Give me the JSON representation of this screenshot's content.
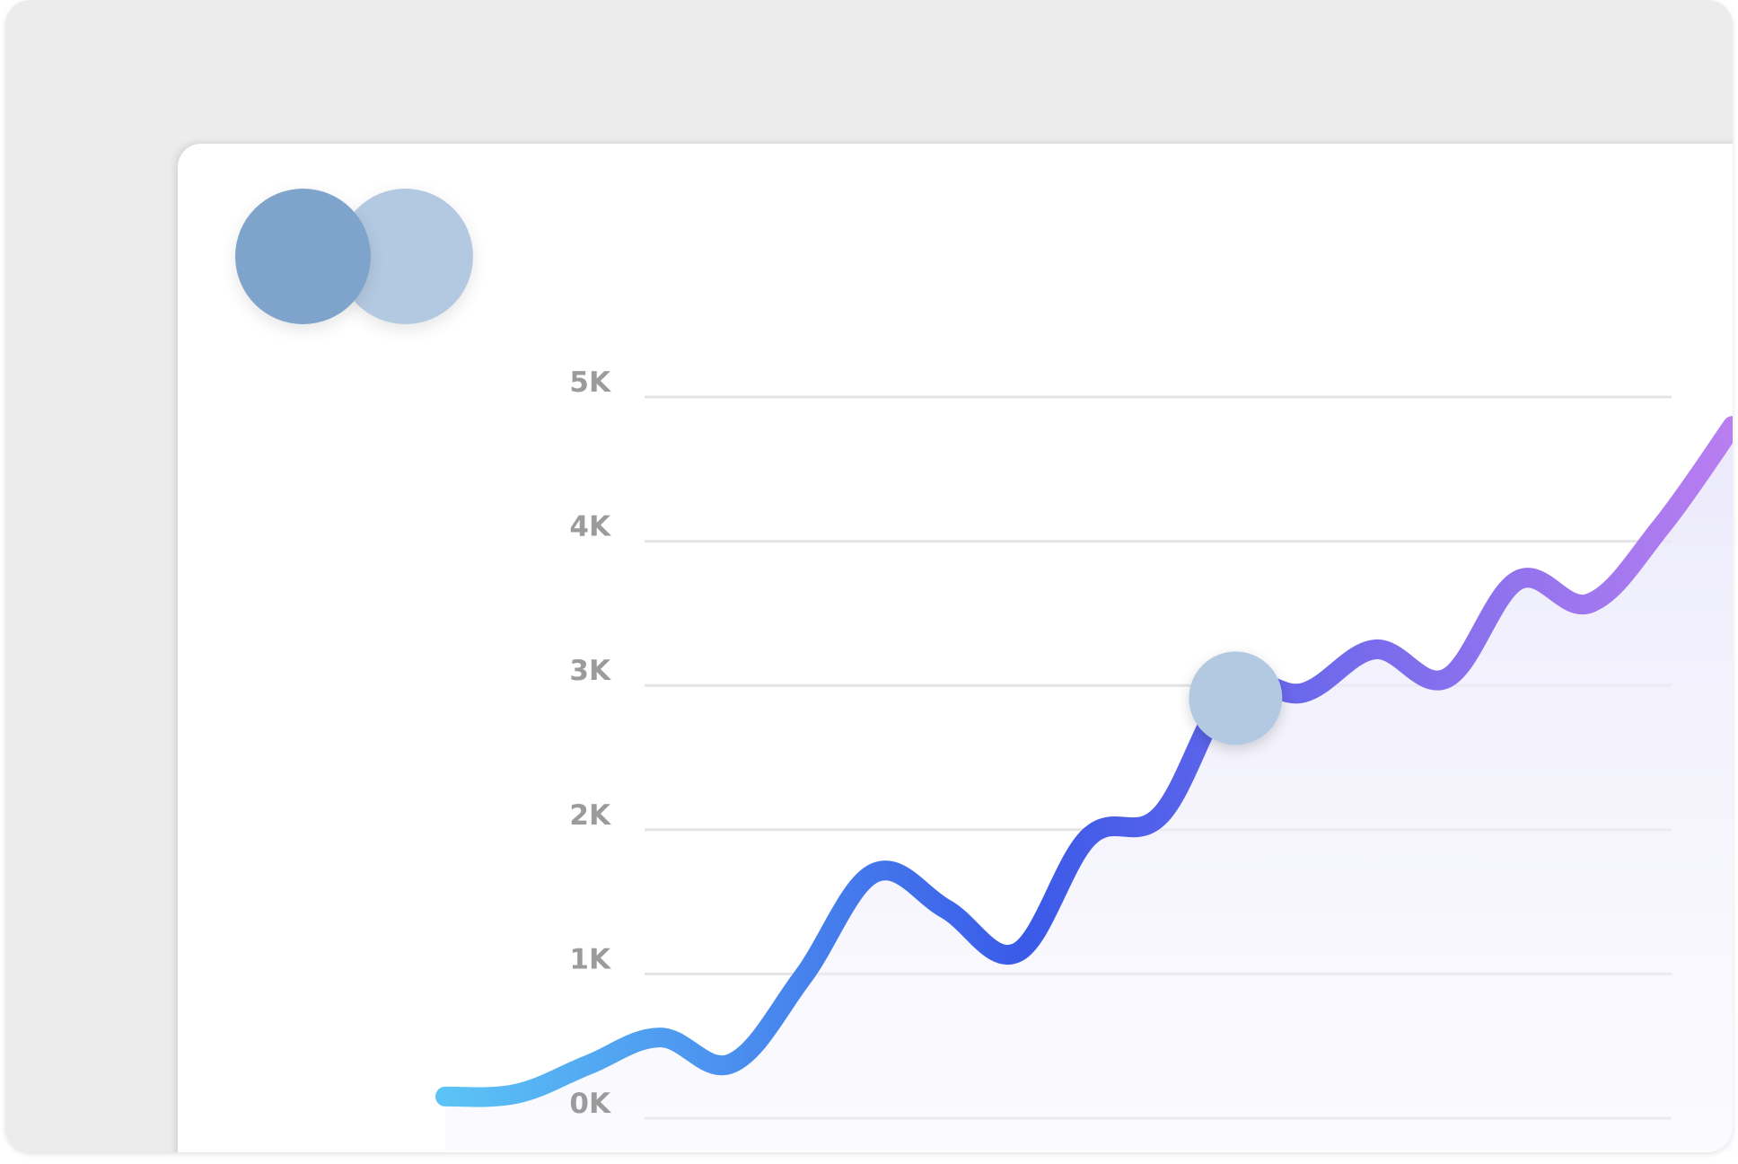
{
  "colors": {
    "avatar_front": "#7fa4cc",
    "avatar_back": "#b3c9e1",
    "marker": "#b3c9e1",
    "line_start": "#5bc3f5",
    "line_mid": "#3a5ae8",
    "line_end": "#b97ef0",
    "grid": "#e4e4e4"
  },
  "avatars": [
    {
      "name": "avatar-front"
    },
    {
      "name": "avatar-back"
    }
  ],
  "chart_data": {
    "type": "line",
    "title": "",
    "xlabel": "",
    "ylabel": "",
    "ylim": [
      0,
      5
    ],
    "yticks": [
      "0K",
      "1K",
      "2K",
      "3K",
      "4K",
      "5K"
    ],
    "grid": true,
    "legend": "none",
    "series": [
      {
        "values": [
          0.15,
          0.17,
          0.37,
          0.56,
          0.38,
          0.98,
          1.7,
          1.45,
          1.15,
          1.95,
          2.1,
          2.98,
          2.95,
          3.25,
          3.05,
          3.73,
          3.57,
          4.1,
          4.8
        ]
      }
    ],
    "highlight_index": 11
  }
}
